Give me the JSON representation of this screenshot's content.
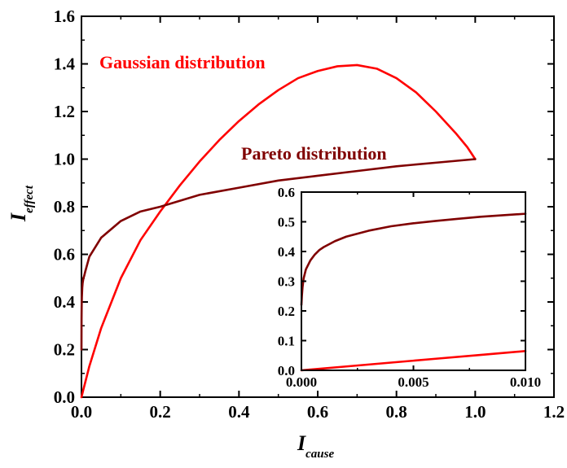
{
  "chart_data": [
    {
      "type": "line",
      "xlabel": "I",
      "xlabel_sub": "cause",
      "ylabel": "I",
      "ylabel_sub": "effect",
      "xlim": [
        0.0,
        1.2
      ],
      "ylim": [
        0.0,
        1.6
      ],
      "xticks": [
        "0.0",
        "0.2",
        "0.4",
        "0.6",
        "0.8",
        "1.0",
        "1.2"
      ],
      "yticks": [
        "0.0",
        "0.2",
        "0.4",
        "0.6",
        "0.8",
        "1.0",
        "1.2",
        "1.4",
        "1.6"
      ],
      "grid": false,
      "annotations": [
        {
          "text": "Gaussian distribution",
          "color": "#ff0000"
        },
        {
          "text": "Pareto distribution",
          "color": "#800000"
        }
      ],
      "series": [
        {
          "name": "Gaussian distribution",
          "color": "#ff0000",
          "x": [
            0,
            0.005,
            0.01,
            0.02,
            0.05,
            0.1,
            0.15,
            0.2,
            0.25,
            0.3,
            0.35,
            0.4,
            0.45,
            0.5,
            0.55,
            0.6,
            0.65,
            0.7,
            0.75,
            0.8,
            0.85,
            0.9,
            0.95,
            0.98,
            1.0
          ],
          "y": [
            0,
            0.033,
            0.065,
            0.13,
            0.29,
            0.5,
            0.66,
            0.78,
            0.89,
            0.99,
            1.08,
            1.16,
            1.23,
            1.29,
            1.34,
            1.37,
            1.39,
            1.395,
            1.38,
            1.34,
            1.28,
            1.2,
            1.11,
            1.05,
            1.0
          ]
        },
        {
          "name": "Pareto distribution",
          "color": "#800000",
          "x": [
            0,
            0.0002,
            0.0005,
            0.001,
            0.002,
            0.003,
            0.005,
            0.007,
            0.01,
            0.02,
            0.05,
            0.1,
            0.15,
            0.2,
            0.3,
            0.4,
            0.5,
            0.6,
            0.7,
            0.8,
            0.9,
            1.0
          ],
          "y": [
            0.2,
            0.33,
            0.38,
            0.42,
            0.46,
            0.48,
            0.5,
            0.51,
            0.53,
            0.59,
            0.67,
            0.74,
            0.78,
            0.8,
            0.85,
            0.88,
            0.91,
            0.93,
            0.95,
            0.97,
            0.985,
            1.0
          ]
        }
      ]
    },
    {
      "type": "line",
      "xlim": [
        0.0,
        0.01
      ],
      "ylim": [
        0.0,
        0.6
      ],
      "xticks": [
        "0.000",
        "0.005",
        "0.010"
      ],
      "yticks": [
        "0.0",
        "0.1",
        "0.2",
        "0.3",
        "0.4",
        "0.5",
        "0.6"
      ],
      "grid": false,
      "series": [
        {
          "color": "#800000",
          "x": [
            0,
            2e-05,
            5e-05,
            0.0001,
            0.0002,
            0.0004,
            0.0006,
            0.0008,
            0.001,
            0.0015,
            0.002,
            0.003,
            0.004,
            0.005,
            0.006,
            0.007,
            0.008,
            0.009,
            0.01
          ],
          "y": [
            0.22,
            0.25,
            0.28,
            0.31,
            0.34,
            0.37,
            0.39,
            0.405,
            0.415,
            0.435,
            0.45,
            0.47,
            0.485,
            0.495,
            0.503,
            0.51,
            0.517,
            0.522,
            0.527
          ]
        },
        {
          "color": "#ff0000",
          "x": [
            0,
            0.002,
            0.004,
            0.006,
            0.008,
            0.01
          ],
          "y": [
            0,
            0.013,
            0.026,
            0.039,
            0.052,
            0.065
          ]
        }
      ]
    }
  ]
}
